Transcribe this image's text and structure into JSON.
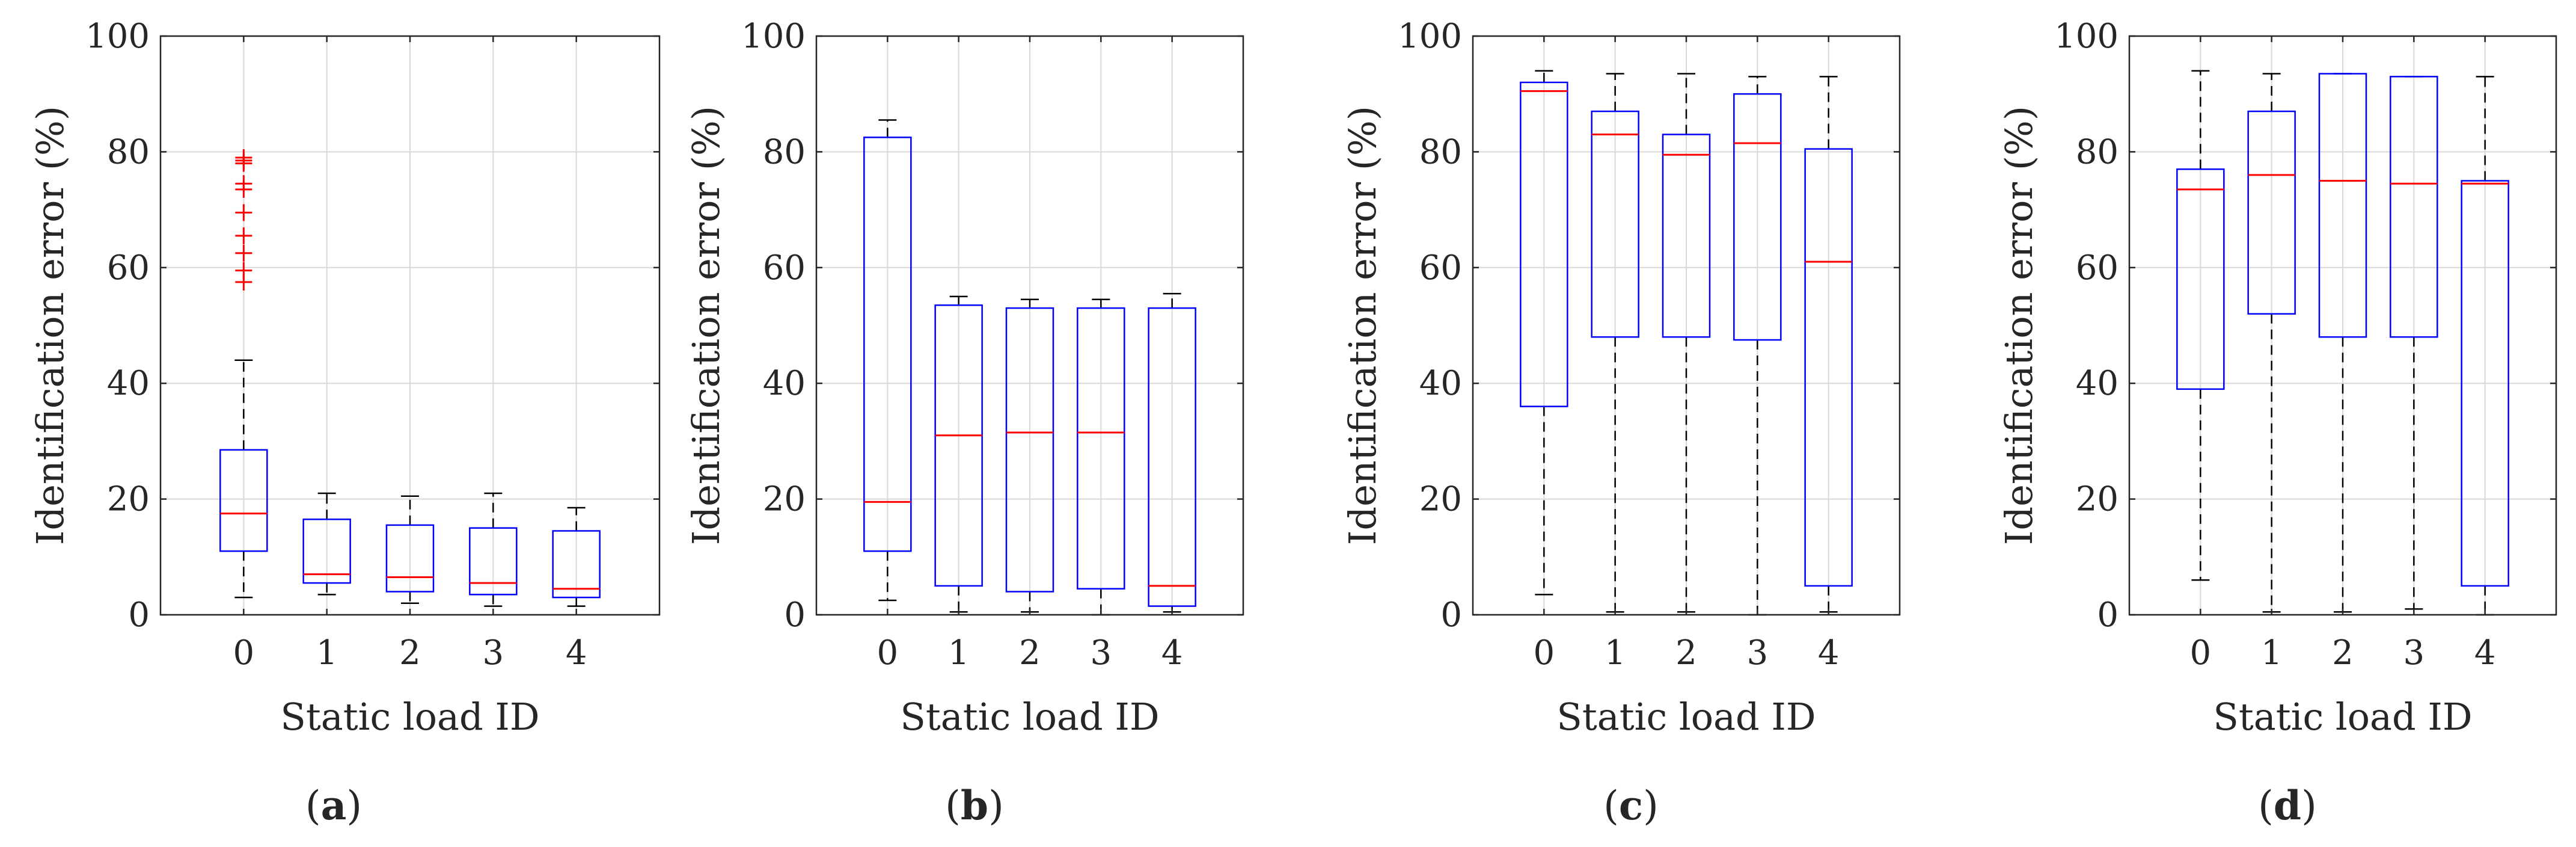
{
  "figure": {
    "panels": [
      "(a)",
      "(b)",
      "(c)",
      "(d)"
    ]
  },
  "colors": {
    "box": "#0000ff",
    "median": "#ff0000",
    "outlier": "#ff0000",
    "whisker": "#000000",
    "grid": "#d9d9d9",
    "axis": "#262626"
  },
  "chart_data": [
    {
      "type": "box",
      "panel_label": "(a)",
      "panel_letter": "a",
      "title": "",
      "xlabel": "Static load ID",
      "ylabel": "Identification error (%)",
      "categories": [
        "0",
        "1",
        "2",
        "3",
        "4"
      ],
      "ylim": [
        0,
        100
      ],
      "yticks": [
        "0",
        "20",
        "40",
        "60",
        "80",
        "100"
      ],
      "grid": true,
      "boxes": [
        {
          "category": "0",
          "whislo": 3,
          "q1": 11,
          "med": 17.5,
          "q3": 28.5,
          "whishi": 44,
          "fliers": [
            57.5,
            59.5,
            62.5,
            65.5,
            69.5,
            73.5,
            74.5,
            78,
            78.5,
            79
          ]
        },
        {
          "category": "1",
          "whislo": 3.5,
          "q1": 5.5,
          "med": 7,
          "q3": 16.5,
          "whishi": 21,
          "fliers": []
        },
        {
          "category": "2",
          "whislo": 2,
          "q1": 4,
          "med": 6.5,
          "q3": 15.5,
          "whishi": 20.5,
          "fliers": []
        },
        {
          "category": "3",
          "whislo": 1.5,
          "q1": 3.5,
          "med": 5.5,
          "q3": 15,
          "whishi": 21,
          "fliers": []
        },
        {
          "category": "4",
          "whislo": 1.5,
          "q1": 3,
          "med": 4.5,
          "q3": 14.5,
          "whishi": 18.5,
          "fliers": []
        }
      ]
    },
    {
      "type": "box",
      "panel_label": "(b)",
      "panel_letter": "b",
      "title": "",
      "xlabel": "Static load ID",
      "ylabel": "Identification error (%)",
      "categories": [
        "0",
        "1",
        "2",
        "3",
        "4"
      ],
      "ylim": [
        0,
        100
      ],
      "yticks": [
        "0",
        "20",
        "40",
        "60",
        "80",
        "100"
      ],
      "grid": true,
      "boxes": [
        {
          "category": "0",
          "whislo": 2.5,
          "q1": 11,
          "med": 19.5,
          "q3": 82.5,
          "whishi": 85.5,
          "fliers": []
        },
        {
          "category": "1",
          "whislo": 0.5,
          "q1": 5,
          "med": 31,
          "q3": 53.5,
          "whishi": 55,
          "fliers": []
        },
        {
          "category": "2",
          "whislo": 0.5,
          "q1": 4,
          "med": 31.5,
          "q3": 53,
          "whishi": 54.5,
          "fliers": []
        },
        {
          "category": "3",
          "whislo": 0,
          "q1": 4.5,
          "med": 31.5,
          "q3": 53,
          "whishi": 54.5,
          "fliers": []
        },
        {
          "category": "4",
          "whislo": 0.5,
          "q1": 1.5,
          "med": 5,
          "q3": 53,
          "whishi": 55.5,
          "fliers": []
        }
      ]
    },
    {
      "type": "box",
      "panel_label": "(c)",
      "panel_letter": "c",
      "title": "",
      "xlabel": "Static load ID",
      "ylabel": "Identification error (%)",
      "categories": [
        "0",
        "1",
        "2",
        "3",
        "4"
      ],
      "ylim": [
        0,
        100
      ],
      "yticks": [
        "0",
        "20",
        "40",
        "60",
        "80",
        "100"
      ],
      "grid": true,
      "boxes": [
        {
          "category": "0",
          "whislo": 3.5,
          "q1": 36,
          "med": 90.5,
          "q3": 92,
          "whishi": 94,
          "fliers": []
        },
        {
          "category": "1",
          "whislo": 0.5,
          "q1": 48,
          "med": 83,
          "q3": 87,
          "whishi": 93.5,
          "fliers": []
        },
        {
          "category": "2",
          "whislo": 0.5,
          "q1": 48,
          "med": 79.5,
          "q3": 83,
          "whishi": 93.5,
          "fliers": []
        },
        {
          "category": "3",
          "whislo": 0,
          "q1": 47.5,
          "med": 81.5,
          "q3": 90,
          "whishi": 93,
          "fliers": []
        },
        {
          "category": "4",
          "whislo": 0.5,
          "q1": 5,
          "med": 61,
          "q3": 80.5,
          "whishi": 93,
          "fliers": []
        }
      ]
    },
    {
      "type": "box",
      "panel_label": "(d)",
      "panel_letter": "d",
      "title": "",
      "xlabel": "Static load ID",
      "ylabel": "Identification error (%)",
      "categories": [
        "0",
        "1",
        "2",
        "3",
        "4"
      ],
      "ylim": [
        0,
        100
      ],
      "yticks": [
        "0",
        "20",
        "40",
        "60",
        "80",
        "100"
      ],
      "grid": true,
      "boxes": [
        {
          "category": "0",
          "whislo": 6,
          "q1": 39,
          "med": 73.5,
          "q3": 77,
          "whishi": 94,
          "fliers": []
        },
        {
          "category": "1",
          "whislo": 0.5,
          "q1": 52,
          "med": 76,
          "q3": 87,
          "whishi": 93.5,
          "fliers": []
        },
        {
          "category": "2",
          "whislo": 0.5,
          "q1": 48,
          "med": 75,
          "q3": 93.5,
          "whishi": 93.5,
          "fliers": []
        },
        {
          "category": "3",
          "whislo": 1,
          "q1": 48,
          "med": 74.5,
          "q3": 93,
          "whishi": 93,
          "fliers": []
        },
        {
          "category": "4",
          "whislo": 0,
          "q1": 5,
          "med": 74.5,
          "q3": 75,
          "whishi": 93,
          "fliers": []
        }
      ]
    }
  ]
}
